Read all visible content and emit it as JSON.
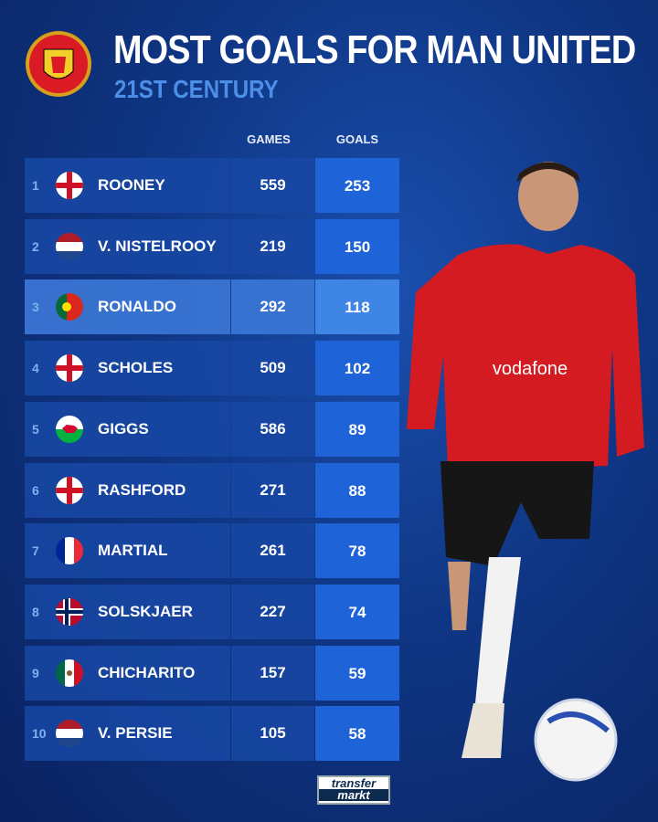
{
  "header": {
    "title": "MOST GOALS FOR MAN UNITED",
    "subtitle": "21ST CENTURY"
  },
  "logos": {
    "club": "MANCHESTER UNITED",
    "brand": "transfer markt"
  },
  "colors": {
    "background": "#0f3684",
    "row": "#1848a5",
    "goals_cell": "#1f63d8",
    "highlight": "#3c78d7",
    "subtitle": "#4d8fe6"
  },
  "chart_data": {
    "type": "table",
    "columns": [
      "GAMES",
      "GOALS"
    ],
    "highlighted_rank": 3,
    "rows": [
      {
        "rank": "1",
        "flag": "england",
        "name": "ROONEY",
        "games": "559",
        "goals": "253"
      },
      {
        "rank": "2",
        "flag": "netherlands",
        "name": "V. NISTELROOY",
        "games": "219",
        "goals": "150"
      },
      {
        "rank": "3",
        "flag": "portugal",
        "name": "RONALDO",
        "games": "292",
        "goals": "118"
      },
      {
        "rank": "4",
        "flag": "england",
        "name": "SCHOLES",
        "games": "509",
        "goals": "102"
      },
      {
        "rank": "5",
        "flag": "wales",
        "name": "GIGGS",
        "games": "586",
        "goals": "89"
      },
      {
        "rank": "6",
        "flag": "england",
        "name": "RASHFORD",
        "games": "271",
        "goals": "88"
      },
      {
        "rank": "7",
        "flag": "france",
        "name": "MARTIAL",
        "games": "261",
        "goals": "78"
      },
      {
        "rank": "8",
        "flag": "norway",
        "name": "SOLSKJAER",
        "games": "227",
        "goals": "74"
      },
      {
        "rank": "9",
        "flag": "mexico",
        "name": "CHICHARITO",
        "games": "157",
        "goals": "59"
      },
      {
        "rank": "10",
        "flag": "netherlands",
        "name": "V. PERSIE",
        "games": "105",
        "goals": "58"
      }
    ]
  }
}
